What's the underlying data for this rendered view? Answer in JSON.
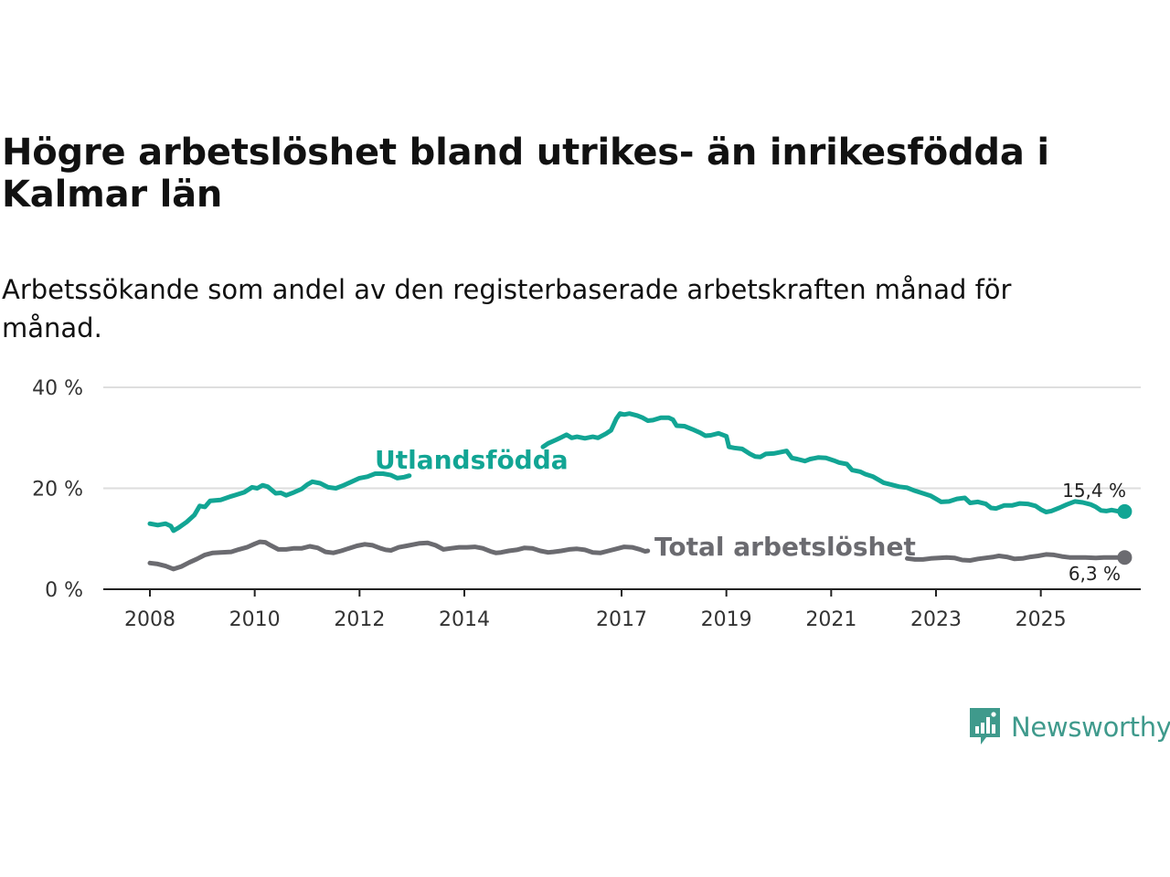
{
  "chart_data": {
    "type": "line",
    "title": "Högre arbetslöshet bland utrikes- än inrikesfödda i Kalmar län",
    "subtitle": "Arbetssökande som andel av den registerbaserade arbetskraften månad för månad.",
    "xlabel": "",
    "ylabel": "",
    "xlim": [
      2008,
      2026
    ],
    "ylim": [
      0,
      40
    ],
    "yticks": [
      0,
      20,
      40
    ],
    "ytick_labels": [
      "0 %",
      "20 %",
      "40 %"
    ],
    "xticks": [
      2008,
      2010,
      2012,
      2014,
      2017,
      2019,
      2021,
      2023,
      2025
    ],
    "xtick_labels": [
      "2008",
      "2010",
      "2012",
      "2014",
      "2017",
      "2019",
      "2021",
      "2023",
      "2025"
    ],
    "grid": true,
    "series": [
      {
        "name": "Utlandsfödda",
        "color": "#12a594",
        "points": [
          [
            2008.0,
            13.0
          ],
          [
            2008.15,
            12.7
          ],
          [
            2008.3,
            13.0
          ],
          [
            2008.4,
            12.5
          ],
          [
            2008.45,
            11.6
          ],
          [
            2008.55,
            12.2
          ],
          [
            2008.7,
            13.3
          ],
          [
            2008.85,
            14.7
          ],
          [
            2008.95,
            16.5
          ],
          [
            2009.05,
            16.3
          ],
          [
            2009.15,
            17.5
          ],
          [
            2009.35,
            17.7
          ],
          [
            2009.55,
            18.4
          ],
          [
            2009.8,
            19.2
          ],
          [
            2009.95,
            20.2
          ],
          [
            2010.05,
            20.0
          ],
          [
            2010.15,
            20.6
          ],
          [
            2010.25,
            20.3
          ],
          [
            2010.4,
            19.0
          ],
          [
            2010.5,
            19.1
          ],
          [
            2010.6,
            18.6
          ],
          [
            2010.75,
            19.2
          ],
          [
            2010.9,
            19.9
          ],
          [
            2011.0,
            20.7
          ],
          [
            2011.1,
            21.3
          ],
          [
            2011.25,
            21.0
          ],
          [
            2011.4,
            20.2
          ],
          [
            2011.55,
            20.0
          ],
          [
            2011.7,
            20.6
          ],
          [
            2011.85,
            21.3
          ],
          [
            2012.0,
            22.0
          ],
          [
            2012.15,
            22.3
          ],
          [
            2012.3,
            22.9
          ],
          [
            2012.45,
            22.9
          ],
          [
            2012.6,
            22.6
          ],
          [
            2012.72,
            22.0
          ],
          [
            2012.85,
            22.2
          ],
          [
            2012.95,
            22.5
          ],
          [
            2015.5,
            28.2
          ],
          [
            2015.6,
            28.9
          ],
          [
            2015.75,
            29.6
          ],
          [
            2015.85,
            30.1
          ],
          [
            2015.95,
            30.6
          ],
          [
            2016.05,
            30.0
          ],
          [
            2016.15,
            30.2
          ],
          [
            2016.3,
            29.9
          ],
          [
            2016.45,
            30.2
          ],
          [
            2016.55,
            30.0
          ],
          [
            2016.7,
            30.8
          ],
          [
            2016.8,
            31.5
          ],
          [
            2016.9,
            33.8
          ],
          [
            2016.97,
            34.8
          ],
          [
            2017.05,
            34.6
          ],
          [
            2017.15,
            34.8
          ],
          [
            2017.3,
            34.4
          ],
          [
            2017.4,
            34.0
          ],
          [
            2017.5,
            33.4
          ],
          [
            2017.6,
            33.5
          ],
          [
            2017.75,
            34.0
          ],
          [
            2017.9,
            34.0
          ],
          [
            2017.98,
            33.6
          ],
          [
            2018.05,
            32.4
          ],
          [
            2018.2,
            32.3
          ],
          [
            2018.35,
            31.7
          ],
          [
            2018.5,
            31.0
          ],
          [
            2018.6,
            30.4
          ],
          [
            2018.7,
            30.5
          ],
          [
            2018.85,
            30.9
          ],
          [
            2019.0,
            30.3
          ],
          [
            2019.05,
            28.2
          ],
          [
            2019.15,
            28.0
          ],
          [
            2019.3,
            27.8
          ],
          [
            2019.45,
            26.8
          ],
          [
            2019.55,
            26.3
          ],
          [
            2019.65,
            26.2
          ],
          [
            2019.75,
            26.8
          ],
          [
            2019.9,
            26.9
          ],
          [
            2020.0,
            27.1
          ],
          [
            2020.15,
            27.4
          ],
          [
            2020.25,
            26.0
          ],
          [
            2020.35,
            25.8
          ],
          [
            2020.5,
            25.4
          ],
          [
            2020.6,
            25.8
          ],
          [
            2020.75,
            26.1
          ],
          [
            2020.9,
            26.0
          ],
          [
            2021.05,
            25.5
          ],
          [
            2021.15,
            25.1
          ],
          [
            2021.3,
            24.8
          ],
          [
            2021.4,
            23.6
          ],
          [
            2021.55,
            23.3
          ],
          [
            2021.65,
            22.8
          ],
          [
            2021.8,
            22.3
          ],
          [
            2021.9,
            21.7
          ],
          [
            2022.0,
            21.1
          ],
          [
            2022.15,
            20.7
          ],
          [
            2022.3,
            20.3
          ],
          [
            2022.45,
            20.1
          ],
          [
            2022.6,
            19.5
          ],
          [
            2022.75,
            19.0
          ],
          [
            2022.9,
            18.5
          ],
          [
            2023.0,
            17.9
          ],
          [
            2023.1,
            17.3
          ],
          [
            2023.25,
            17.4
          ],
          [
            2023.4,
            17.9
          ],
          [
            2023.55,
            18.1
          ],
          [
            2023.65,
            17.1
          ],
          [
            2023.8,
            17.3
          ],
          [
            2023.95,
            16.9
          ],
          [
            2024.05,
            16.1
          ],
          [
            2024.15,
            16.0
          ],
          [
            2024.3,
            16.6
          ],
          [
            2024.45,
            16.6
          ],
          [
            2024.6,
            17.0
          ],
          [
            2024.75,
            16.9
          ],
          [
            2024.9,
            16.5
          ],
          [
            2025.0,
            15.8
          ],
          [
            2025.1,
            15.3
          ],
          [
            2025.2,
            15.5
          ],
          [
            2025.35,
            16.1
          ],
          [
            2025.5,
            16.8
          ],
          [
            2025.65,
            17.4
          ],
          [
            2025.8,
            17.2
          ],
          [
            2025.95,
            16.8
          ],
          [
            2026.05,
            16.3
          ],
          [
            2026.15,
            15.6
          ],
          [
            2026.25,
            15.5
          ],
          [
            2026.35,
            15.7
          ],
          [
            2026.5,
            15.4
          ],
          [
            2026.6,
            15.4
          ]
        ],
        "end_label": "15,4 %",
        "end_value": 15.4
      },
      {
        "name": "Total arbetslöshet",
        "color": "#6b6b70",
        "points": [
          [
            2008.0,
            5.2
          ],
          [
            2008.15,
            5.0
          ],
          [
            2008.3,
            4.6
          ],
          [
            2008.45,
            4.0
          ],
          [
            2008.6,
            4.5
          ],
          [
            2008.75,
            5.3
          ],
          [
            2008.9,
            6.0
          ],
          [
            2009.05,
            6.8
          ],
          [
            2009.2,
            7.2
          ],
          [
            2009.35,
            7.3
          ],
          [
            2009.55,
            7.4
          ],
          [
            2009.7,
            7.9
          ],
          [
            2009.85,
            8.3
          ],
          [
            2010.0,
            9.0
          ],
          [
            2010.1,
            9.4
          ],
          [
            2010.2,
            9.3
          ],
          [
            2010.3,
            8.7
          ],
          [
            2010.45,
            7.9
          ],
          [
            2010.6,
            7.9
          ],
          [
            2010.75,
            8.1
          ],
          [
            2010.9,
            8.1
          ],
          [
            2011.05,
            8.5
          ],
          [
            2011.2,
            8.2
          ],
          [
            2011.35,
            7.4
          ],
          [
            2011.5,
            7.2
          ],
          [
            2011.65,
            7.6
          ],
          [
            2011.8,
            8.1
          ],
          [
            2011.95,
            8.6
          ],
          [
            2012.1,
            8.9
          ],
          [
            2012.25,
            8.7
          ],
          [
            2012.4,
            8.1
          ],
          [
            2012.5,
            7.8
          ],
          [
            2012.6,
            7.7
          ],
          [
            2012.75,
            8.3
          ],
          [
            2012.9,
            8.6
          ],
          [
            2013.05,
            8.9
          ],
          [
            2013.15,
            9.1
          ],
          [
            2013.3,
            9.2
          ],
          [
            2013.45,
            8.7
          ],
          [
            2013.6,
            7.9
          ],
          [
            2013.75,
            8.1
          ],
          [
            2013.9,
            8.3
          ],
          [
            2014.05,
            8.3
          ],
          [
            2014.2,
            8.4
          ],
          [
            2014.35,
            8.1
          ],
          [
            2014.5,
            7.5
          ],
          [
            2014.6,
            7.2
          ],
          [
            2014.7,
            7.3
          ],
          [
            2014.85,
            7.6
          ],
          [
            2015.0,
            7.8
          ],
          [
            2015.15,
            8.2
          ],
          [
            2015.3,
            8.1
          ],
          [
            2015.45,
            7.6
          ],
          [
            2015.6,
            7.3
          ],
          [
            2015.7,
            7.4
          ],
          [
            2015.85,
            7.6
          ],
          [
            2016.0,
            7.9
          ],
          [
            2016.15,
            8.0
          ],
          [
            2016.3,
            7.8
          ],
          [
            2016.45,
            7.3
          ],
          [
            2016.6,
            7.2
          ],
          [
            2016.75,
            7.6
          ],
          [
            2016.9,
            8.0
          ],
          [
            2017.05,
            8.4
          ],
          [
            2017.2,
            8.3
          ],
          [
            2017.35,
            7.9
          ],
          [
            2017.45,
            7.5
          ],
          [
            2017.5,
            7.6
          ],
          [
            2022.45,
            6.1
          ],
          [
            2022.6,
            5.9
          ],
          [
            2022.75,
            5.9
          ],
          [
            2022.9,
            6.1
          ],
          [
            2023.05,
            6.2
          ],
          [
            2023.2,
            6.3
          ],
          [
            2023.35,
            6.2
          ],
          [
            2023.5,
            5.8
          ],
          [
            2023.65,
            5.7
          ],
          [
            2023.8,
            6.0
          ],
          [
            2023.95,
            6.2
          ],
          [
            2024.1,
            6.4
          ],
          [
            2024.2,
            6.6
          ],
          [
            2024.35,
            6.4
          ],
          [
            2024.5,
            6.0
          ],
          [
            2024.65,
            6.1
          ],
          [
            2024.8,
            6.4
          ],
          [
            2024.95,
            6.6
          ],
          [
            2025.1,
            6.9
          ],
          [
            2025.25,
            6.8
          ],
          [
            2025.4,
            6.5
          ],
          [
            2025.55,
            6.3
          ],
          [
            2025.7,
            6.3
          ],
          [
            2025.85,
            6.3
          ],
          [
            2026.05,
            6.2
          ],
          [
            2026.2,
            6.3
          ],
          [
            2026.4,
            6.3
          ],
          [
            2026.6,
            6.3
          ]
        ],
        "end_label": "6,3 %",
        "end_value": 6.3
      }
    ]
  },
  "brand": {
    "name": "Newsworthy",
    "icon": "newsworthy-logo-icon"
  }
}
